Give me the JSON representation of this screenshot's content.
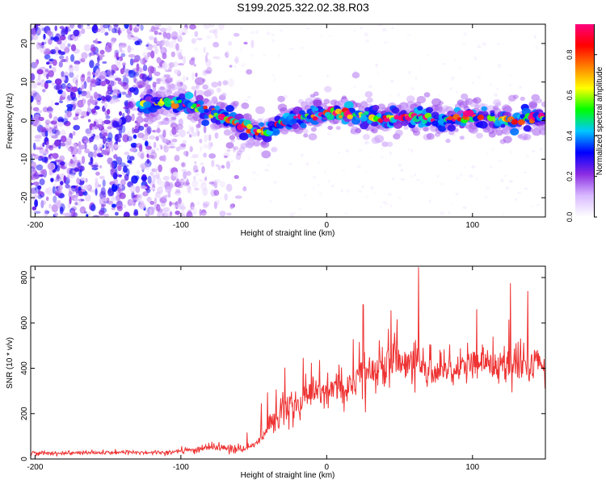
{
  "figure": {
    "title": "S199.2025.322.02.38.R03"
  },
  "chart_data": [
    {
      "type": "heatmap",
      "xlabel": "Height of straight line (km)",
      "ylabel": "Frequency (Hz)",
      "xlim": [
        -203,
        150
      ],
      "ylim": [
        -25,
        25
      ],
      "xticks": [
        -200,
        -100,
        0,
        100
      ],
      "yticks": [
        -20,
        -10,
        0,
        10,
        20
      ],
      "xtick_labels": [
        "-200",
        "-100",
        "0",
        "100"
      ],
      "ytick_labels": [
        "-20",
        "-10",
        "0",
        "10",
        "20"
      ],
      "colorbar": {
        "label": "Normalized spectral amplitude",
        "range": [
          0,
          0.95
        ],
        "ticks": [
          0,
          0.2,
          0.4,
          0.6,
          0.8
        ],
        "tick_labels": [
          "0.0",
          "0.2",
          "0.4",
          "0.6",
          "0.8"
        ],
        "colormap": [
          "#ffffff",
          "#d8b8ff",
          "#8a2be2",
          "#0000ff",
          "#00c8ff",
          "#00ff00",
          "#ffff00",
          "#ff8000",
          "#ff0000",
          "#ff0080"
        ]
      },
      "ridge": {
        "x": [
          -125,
          -110,
          -100,
          -90,
          -80,
          -70,
          -60,
          -50,
          -45,
          -42,
          -35,
          -25,
          -15,
          0,
          10,
          20,
          30,
          40,
          50,
          60,
          70,
          80,
          90,
          100,
          110,
          120,
          130,
          140,
          150
        ],
        "y": [
          4,
          4.5,
          5,
          3.5,
          2,
          1,
          -1,
          -2.5,
          -3,
          -3,
          -1.5,
          0,
          1,
          2,
          2,
          1.5,
          1,
          0.5,
          0.5,
          1,
          0.5,
          0,
          0.5,
          1,
          0.5,
          0,
          0,
          1,
          1
        ],
        "peak_amplitude": 0.9
      },
      "noise_region": {
        "x_range": [
          -203,
          -95
        ],
        "y_range": [
          -25,
          25
        ]
      }
    },
    {
      "type": "line",
      "xlabel": "Height of straight line (km)",
      "ylabel": "SNR (10 * v/v)",
      "xlim": [
        -203,
        150
      ],
      "ylim": [
        0,
        850
      ],
      "xticks": [
        -200,
        -100,
        0,
        100
      ],
      "yticks": [
        0,
        200,
        400,
        600,
        800
      ],
      "xtick_labels": [
        "-200",
        "-100",
        "0",
        "100"
      ],
      "ytick_labels": [
        "0",
        "200",
        "400",
        "600",
        "800"
      ],
      "color": "#ee3333",
      "trend": {
        "x": [
          -203,
          -110,
          -95,
          -80,
          -65,
          -55,
          -45,
          -35,
          -25,
          -15,
          -5,
          5,
          15,
          25,
          35,
          45,
          60,
          80,
          100,
          120,
          140,
          150
        ],
        "y": [
          25,
          30,
          35,
          55,
          45,
          40,
          90,
          170,
          230,
          260,
          290,
          310,
          330,
          370,
          400,
          420,
          410,
          405,
          410,
          420,
          430,
          425
        ]
      },
      "peaks": [
        {
          "x": 63,
          "y": 845
        },
        {
          "x": 126,
          "y": 775
        },
        {
          "x": 138,
          "y": 740
        },
        {
          "x": 44,
          "y": 655
        },
        {
          "x": 25,
          "y": 680
        },
        {
          "x": 103,
          "y": 660
        }
      ]
    }
  ]
}
